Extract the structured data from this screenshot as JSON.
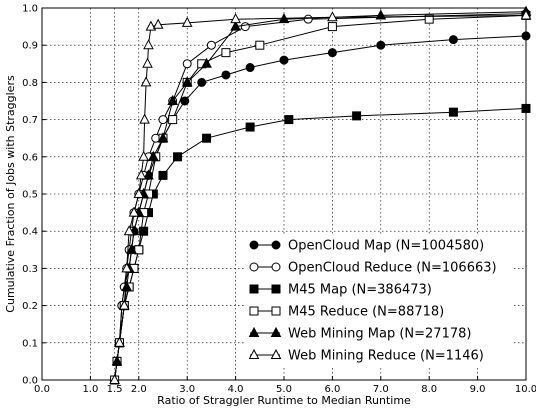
{
  "chart_data": {
    "type": "line",
    "title": "",
    "xlabel": "Ratio of Straggler Runtime to Median Runtime",
    "ylabel": "Cumulative Fraction of Jobs with Stragglers",
    "xlim": [
      0,
      10
    ],
    "ylim": [
      0,
      1
    ],
    "x_ticks": [
      "0.0",
      "1.0",
      "1.5",
      "2.0",
      "3.0",
      "4.0",
      "5.0",
      "6.0",
      "7.0",
      "8.0",
      "9.0",
      "10.0"
    ],
    "y_ticks": [
      "0.0",
      "0.1",
      "0.2",
      "0.3",
      "0.4",
      "0.5",
      "0.6",
      "0.7",
      "0.8",
      "0.9",
      "1.0"
    ],
    "grid": true,
    "legend_position": "bottom-right",
    "series": [
      {
        "name": "OpenCloud Map (N=1004580)",
        "marker": "circle-filled",
        "x": [
          1.5,
          1.55,
          1.6,
          1.65,
          1.7,
          1.8,
          1.85,
          1.9,
          2.0,
          2.1,
          2.2,
          2.35,
          2.5,
          2.7,
          2.95,
          3.3,
          3.8,
          4.3,
          5.0,
          6.0,
          7.0,
          8.5,
          10.0
        ],
        "y": [
          0.0,
          0.05,
          0.1,
          0.2,
          0.25,
          0.3,
          0.35,
          0.4,
          0.45,
          0.5,
          0.55,
          0.6,
          0.65,
          0.7,
          0.75,
          0.8,
          0.82,
          0.84,
          0.86,
          0.88,
          0.9,
          0.915,
          0.925
        ]
      },
      {
        "name": "OpenCloud Reduce (N=106663)",
        "marker": "circle-open",
        "x": [
          1.5,
          1.55,
          1.6,
          1.65,
          1.7,
          1.75,
          1.8,
          1.85,
          1.9,
          2.0,
          2.1,
          2.2,
          2.35,
          2.5,
          2.7,
          3.0,
          3.5,
          4.2,
          5.5,
          10.0
        ],
        "y": [
          0.0,
          0.05,
          0.1,
          0.2,
          0.25,
          0.3,
          0.35,
          0.4,
          0.45,
          0.5,
          0.55,
          0.6,
          0.65,
          0.7,
          0.75,
          0.85,
          0.9,
          0.95,
          0.97,
          0.985
        ]
      },
      {
        "name": "M45 Map (N=386473)",
        "marker": "square-filled",
        "x": [
          1.55,
          1.6,
          1.7,
          1.8,
          1.9,
          2.0,
          2.1,
          2.2,
          2.3,
          2.5,
          2.8,
          3.4,
          4.3,
          5.1,
          6.5,
          8.5,
          10.0
        ],
        "y": [
          0.05,
          0.1,
          0.2,
          0.25,
          0.3,
          0.35,
          0.4,
          0.45,
          0.5,
          0.55,
          0.6,
          0.65,
          0.68,
          0.7,
          0.71,
          0.72,
          0.73
        ]
      },
      {
        "name": "M45 Reduce (N=88718)",
        "marker": "square-open",
        "x": [
          1.5,
          1.55,
          1.6,
          1.7,
          1.8,
          1.9,
          2.0,
          2.1,
          2.2,
          2.35,
          2.5,
          2.7,
          3.0,
          3.3,
          3.8,
          4.5,
          6.0,
          8.0,
          10.0
        ],
        "y": [
          0.0,
          0.05,
          0.1,
          0.2,
          0.25,
          0.3,
          0.35,
          0.45,
          0.5,
          0.6,
          0.65,
          0.7,
          0.8,
          0.85,
          0.88,
          0.9,
          0.95,
          0.97,
          0.98
        ]
      },
      {
        "name": "Web Mining Map (N=27178)",
        "marker": "triangle-filled",
        "x": [
          1.55,
          1.6,
          1.7,
          1.75,
          1.8,
          1.85,
          1.9,
          2.0,
          2.1,
          2.2,
          2.3,
          2.5,
          2.7,
          3.0,
          3.4,
          4.0,
          5.0,
          7.0,
          10.0
        ],
        "y": [
          0.05,
          0.1,
          0.2,
          0.25,
          0.3,
          0.35,
          0.4,
          0.45,
          0.5,
          0.55,
          0.6,
          0.65,
          0.75,
          0.8,
          0.85,
          0.95,
          0.97,
          0.98,
          0.99
        ]
      },
      {
        "name": "Web Mining Reduce (N=1146)",
        "marker": "triangle-open",
        "x": [
          1.5,
          1.6,
          1.7,
          1.75,
          1.8,
          1.9,
          2.0,
          2.05,
          2.1,
          2.12,
          2.15,
          2.18,
          2.2,
          2.25,
          2.4,
          3.0,
          4.0,
          6.0,
          10.0
        ],
        "y": [
          0.0,
          0.1,
          0.2,
          0.3,
          0.4,
          0.45,
          0.5,
          0.55,
          0.6,
          0.7,
          0.8,
          0.85,
          0.9,
          0.95,
          0.955,
          0.96,
          0.97,
          0.975,
          0.98
        ]
      }
    ]
  }
}
